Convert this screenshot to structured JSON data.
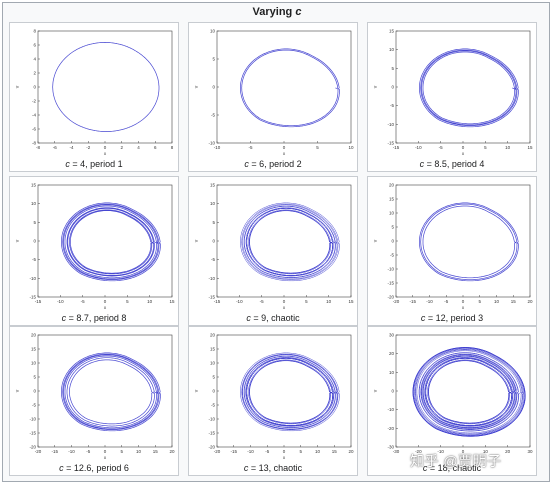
{
  "title": {
    "prefix": "Varying ",
    "var": "c"
  },
  "watermark": "知乎 @贾明子",
  "colors": {
    "curve": "#3333cc",
    "axes": "#444444",
    "panel_bg": "#f8f9fa"
  },
  "chart_data": [
    {
      "type": "line",
      "c": 4,
      "caption_var": "c",
      "caption_rest": " = 4, period 1",
      "loops": 1,
      "xlim": [
        -8,
        8
      ],
      "ylim": [
        -8,
        8
      ],
      "xticks": [
        -8,
        -6,
        -4,
        -2,
        0,
        2,
        4,
        6,
        8
      ],
      "yticks": [
        -8,
        -6,
        -4,
        -2,
        0,
        2,
        4,
        6,
        8
      ],
      "xlabel": "x",
      "ylabel": "Y"
    },
    {
      "type": "line",
      "c": 6,
      "caption_var": "c",
      "caption_rest": " = 6, period 2",
      "loops": 2,
      "xlim": [
        -10,
        10
      ],
      "ylim": [
        -10,
        10
      ],
      "xticks": [
        -10,
        -5,
        0,
        5,
        10
      ],
      "yticks": [
        -10,
        -5,
        0,
        5,
        10
      ],
      "xlabel": "x",
      "ylabel": "Y"
    },
    {
      "type": "line",
      "c": 8.5,
      "caption_var": "c",
      "caption_rest": " = 8.5, period 4",
      "loops": 4,
      "xlim": [
        -15,
        15
      ],
      "ylim": [
        -15,
        15
      ],
      "xticks": [
        -15,
        -10,
        -5,
        0,
        5,
        10,
        15
      ],
      "yticks": [
        -15,
        -10,
        -5,
        0,
        5,
        10,
        15
      ],
      "xlabel": "x",
      "ylabel": "Y"
    },
    {
      "type": "line",
      "c": 8.7,
      "caption_var": "c",
      "caption_rest": " = 8.7, period 8",
      "loops": 8,
      "xlim": [
        -15,
        15
      ],
      "ylim": [
        -15,
        15
      ],
      "xticks": [
        -15,
        -10,
        -5,
        0,
        5,
        10,
        15
      ],
      "yticks": [
        -15,
        -10,
        -5,
        0,
        5,
        10,
        15
      ],
      "xlabel": "x",
      "ylabel": "Y"
    },
    {
      "type": "line",
      "c": 9,
      "caption_var": "c",
      "caption_rest": " = 9, chaotic",
      "loops": 14,
      "xlim": [
        -15,
        15
      ],
      "ylim": [
        -15,
        15
      ],
      "xticks": [
        -15,
        -10,
        -5,
        0,
        5,
        10,
        15
      ],
      "yticks": [
        -15,
        -10,
        -5,
        0,
        5,
        10,
        15
      ],
      "xlabel": "x",
      "ylabel": "Y"
    },
    {
      "type": "line",
      "c": 12,
      "caption_var": "c",
      "caption_rest": " = 12, period 3",
      "loops": 3,
      "xlim": [
        -20,
        20
      ],
      "ylim": [
        -20,
        20
      ],
      "xticks": [
        -20,
        -15,
        -10,
        -5,
        0,
        5,
        10,
        15,
        20
      ],
      "yticks": [
        -20,
        -15,
        -10,
        -5,
        0,
        5,
        10,
        15,
        20
      ],
      "xlabel": "x",
      "ylabel": "Y"
    },
    {
      "type": "line",
      "c": 12.6,
      "caption_var": "c",
      "caption_rest": " = 12.6, period 6",
      "loops": 6,
      "xlim": [
        -20,
        20
      ],
      "ylim": [
        -20,
        20
      ],
      "xticks": [
        -20,
        -15,
        -10,
        -5,
        0,
        5,
        10,
        15,
        20
      ],
      "yticks": [
        -20,
        -15,
        -10,
        -5,
        0,
        5,
        10,
        15,
        20
      ],
      "xlabel": "x",
      "ylabel": "Y"
    },
    {
      "type": "line",
      "c": 13,
      "caption_var": "c",
      "caption_rest": " = 13, chaotic",
      "loops": 16,
      "xlim": [
        -20,
        20
      ],
      "ylim": [
        -20,
        20
      ],
      "xticks": [
        -20,
        -15,
        -10,
        -5,
        0,
        5,
        10,
        15,
        20
      ],
      "yticks": [
        -20,
        -15,
        -10,
        -5,
        0,
        5,
        10,
        15,
        20
      ],
      "xlabel": "x",
      "ylabel": "Y"
    },
    {
      "type": "line",
      "c": 18,
      "caption_var": "c",
      "caption_rest": " = 18, chaotic",
      "loops": 26,
      "xlim": [
        -30,
        30
      ],
      "ylim": [
        -30,
        30
      ],
      "xticks": [
        -30,
        -20,
        -10,
        0,
        10,
        20,
        30
      ],
      "yticks": [
        -30,
        -20,
        -10,
        0,
        10,
        20,
        30
      ],
      "xlabel": "x",
      "ylabel": "Y"
    }
  ]
}
